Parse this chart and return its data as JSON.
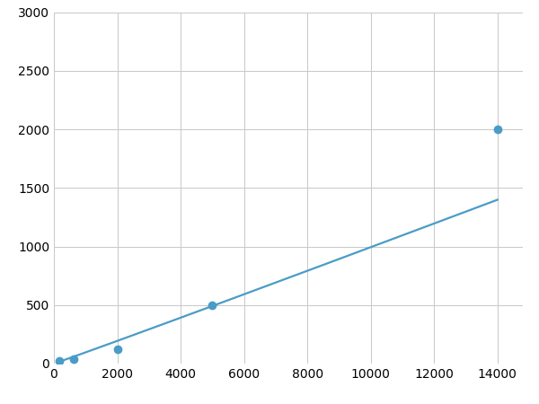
{
  "x": [
    156,
    625,
    2000,
    5000,
    14000
  ],
  "y": [
    23,
    40,
    125,
    500,
    2000
  ],
  "line_color": "#4a9cc7",
  "marker_color": "#4a9cc7",
  "marker_size": 6,
  "marker_style": "o",
  "linewidth": 1.6,
  "xlim": [
    0,
    14800
  ],
  "ylim": [
    0,
    3000
  ],
  "xticks": [
    0,
    2000,
    4000,
    6000,
    8000,
    10000,
    12000,
    14000
  ],
  "yticks": [
    0,
    500,
    1000,
    1500,
    2000,
    2500,
    3000
  ],
  "grid": true,
  "grid_color": "#c8c8c8",
  "grid_linewidth": 0.7,
  "background_color": "#ffffff",
  "figure_background": "#ffffff"
}
